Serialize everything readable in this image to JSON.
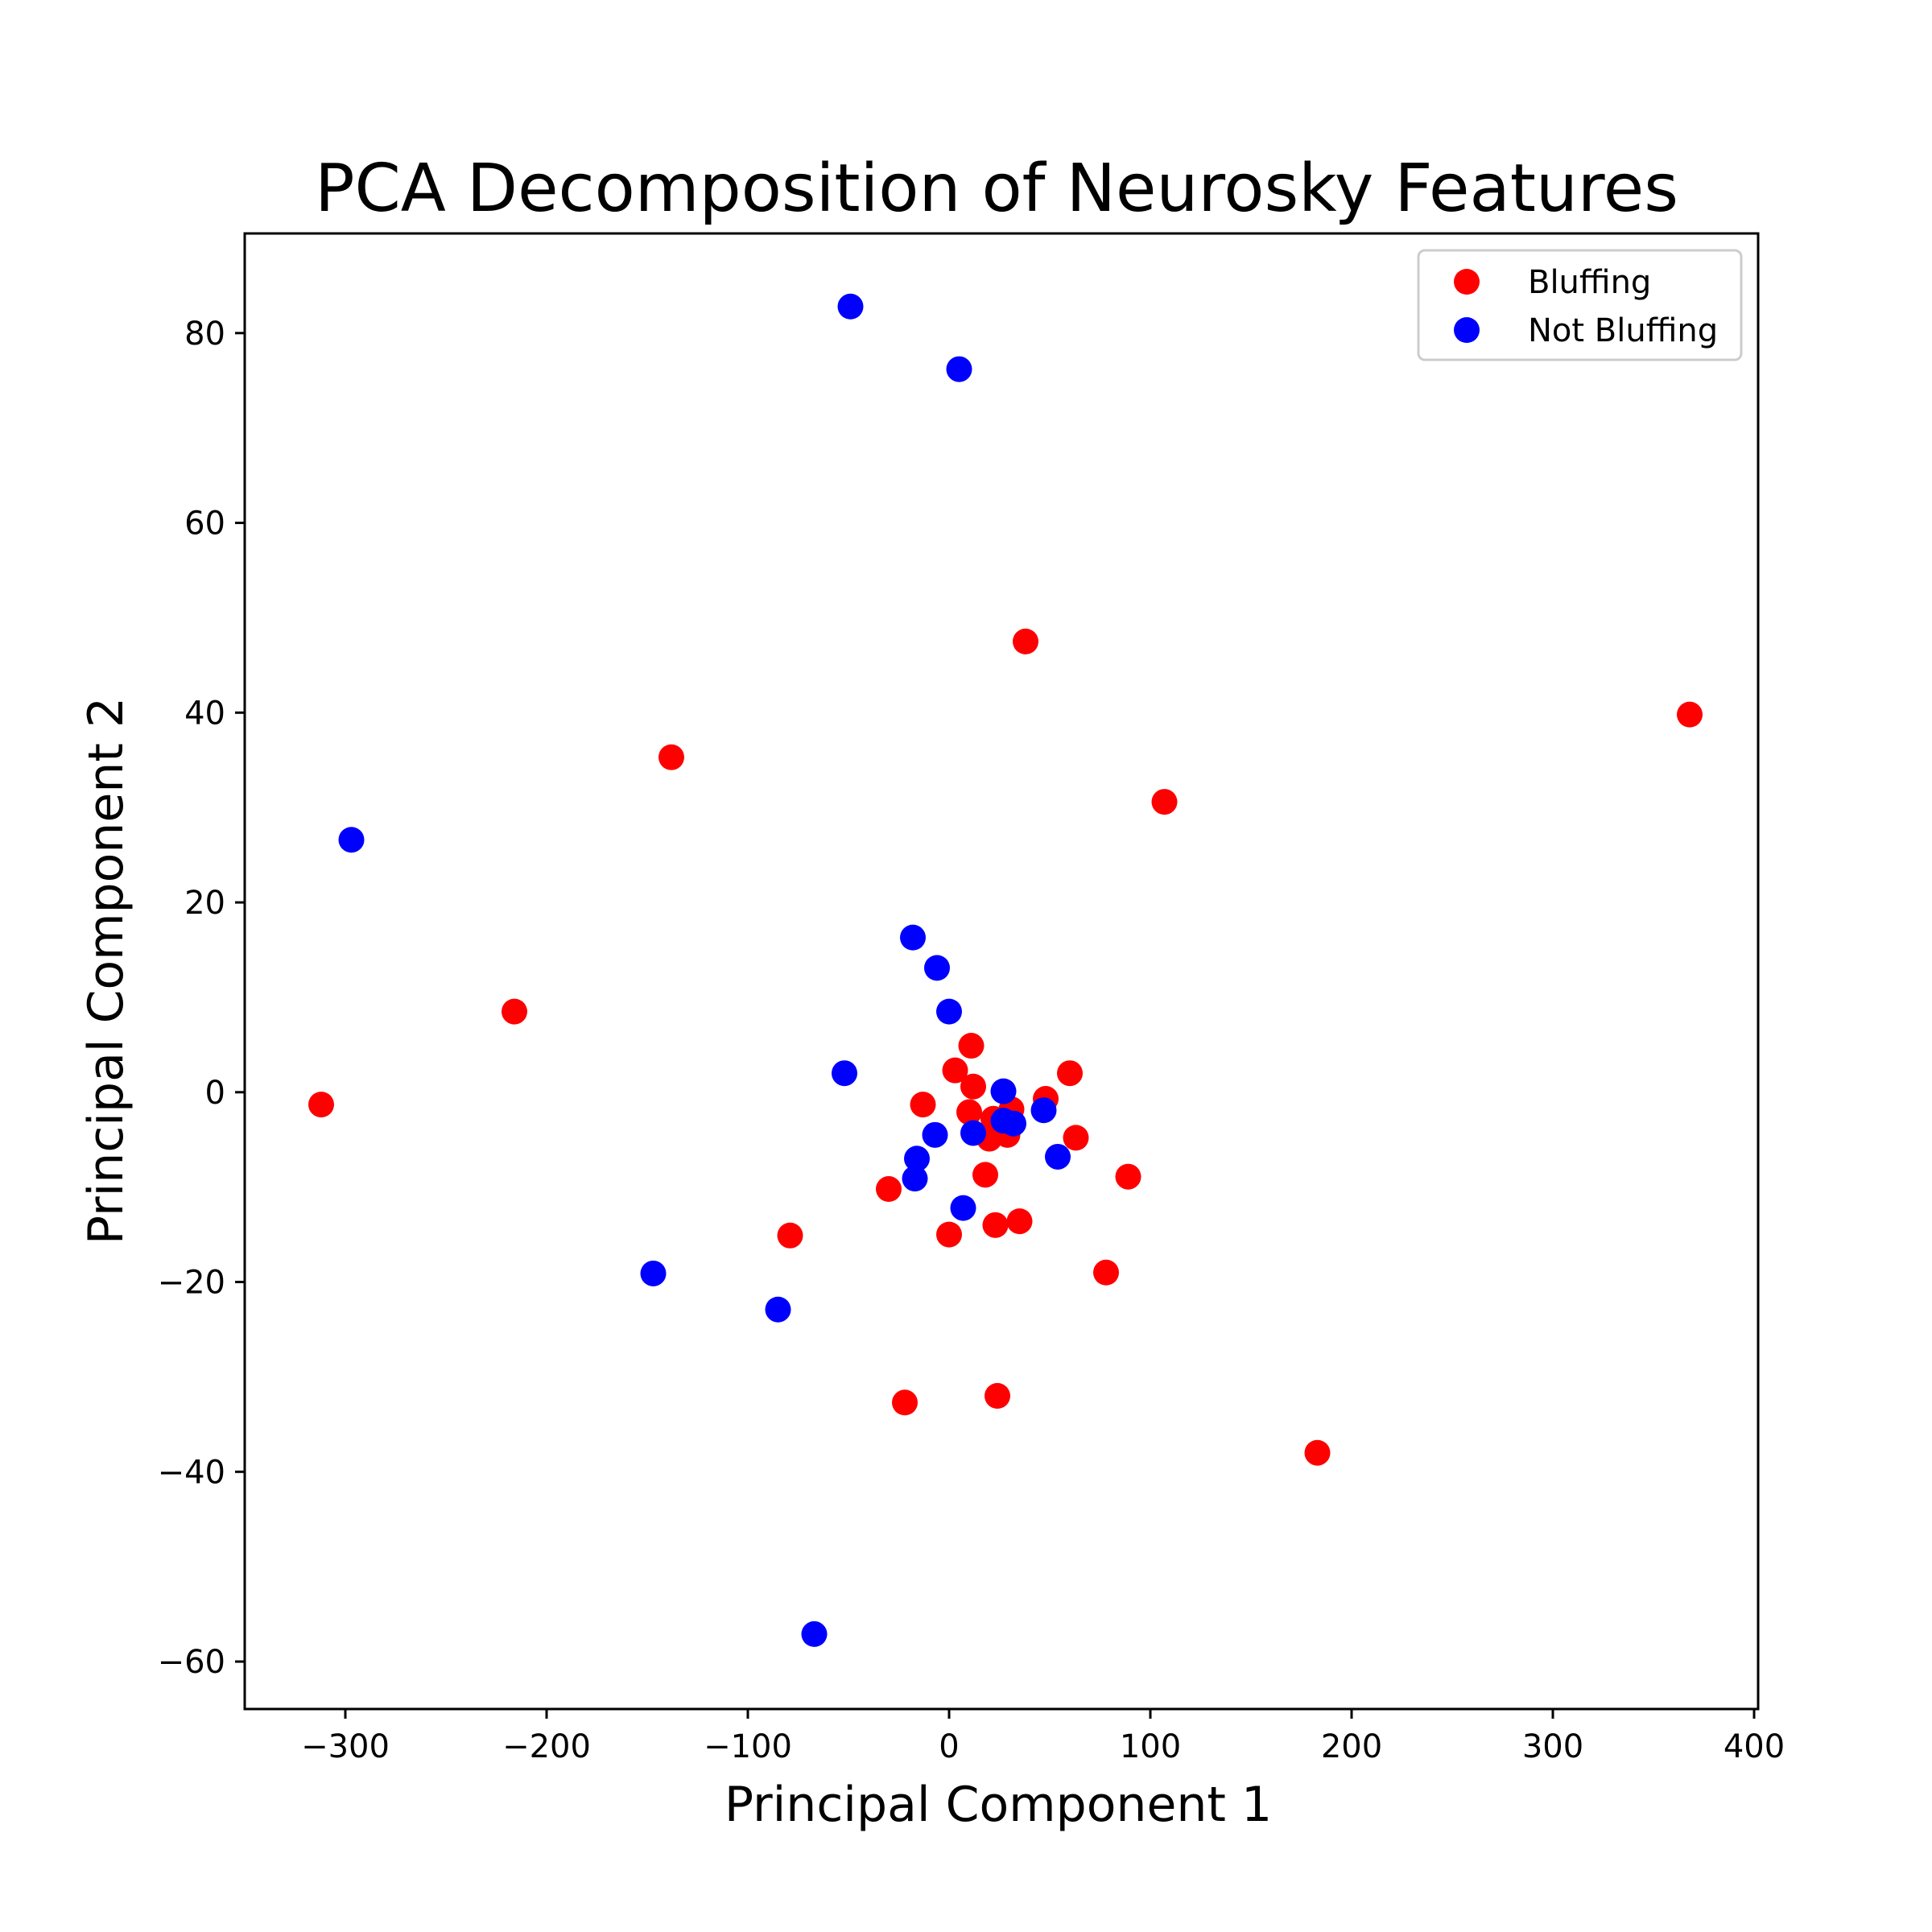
{
  "chart_data": {
    "type": "scatter",
    "title": "PCA Decomposition of Neurosky Features",
    "xlabel": "Principal Component 1",
    "ylabel": "Principal Component 2",
    "xlim": [
      -350,
      402
    ],
    "ylim": [
      -65,
      90.5
    ],
    "xticks": [
      -300,
      -200,
      -100,
      0,
      100,
      200,
      300,
      400
    ],
    "xtick_labels": [
      "−300",
      "−200",
      "−100",
      "0",
      "100",
      "200",
      "300",
      "400"
    ],
    "yticks": [
      -60,
      -40,
      -20,
      0,
      20,
      40,
      60,
      80
    ],
    "ytick_labels": [
      "−60",
      "−40",
      "−20",
      "0",
      "20",
      "40",
      "60",
      "80"
    ],
    "grid": false,
    "legend_position": "top-right",
    "series": [
      {
        "name": "Bluffing",
        "color": "#ff0000",
        "points": [
          [
            -312,
            -1.3
          ],
          [
            -216,
            8.5
          ],
          [
            -138,
            35.3
          ],
          [
            -79,
            -15.1
          ],
          [
            -30,
            -10.2
          ],
          [
            -22,
            -32.7
          ],
          [
            -13,
            -1.3
          ],
          [
            0,
            -15
          ],
          [
            3,
            2.3
          ],
          [
            10,
            -2.1
          ],
          [
            11,
            4.9
          ],
          [
            12,
            0.6
          ],
          [
            18,
            -8.7
          ],
          [
            20,
            -4.9
          ],
          [
            22,
            -2.8
          ],
          [
            23,
            -14
          ],
          [
            24,
            -32
          ],
          [
            29,
            -4.5
          ],
          [
            31,
            -1.8
          ],
          [
            35,
            -13.6
          ],
          [
            38,
            47.5
          ],
          [
            48,
            -0.7
          ],
          [
            60,
            2
          ],
          [
            63,
            -4.8
          ],
          [
            78,
            -19
          ],
          [
            89,
            -8.9
          ],
          [
            107,
            30.6
          ],
          [
            183,
            -38
          ],
          [
            368,
            39.8
          ]
        ]
      },
      {
        "name": "Not Bluffing",
        "color": "#0000ff",
        "points": [
          [
            -297,
            26.6
          ],
          [
            -147,
            -19.1
          ],
          [
            -85,
            -22.9
          ],
          [
            -67,
            -57.1
          ],
          [
            -52,
            2
          ],
          [
            -49,
            82.8
          ],
          [
            -18,
            16.3
          ],
          [
            -17,
            -9.1
          ],
          [
            -16,
            -7
          ],
          [
            -7,
            -4.5
          ],
          [
            -6,
            13.1
          ],
          [
            0,
            8.5
          ],
          [
            5,
            76.2
          ],
          [
            7,
            -12.2
          ],
          [
            12,
            -4.3
          ],
          [
            27,
            0.1
          ],
          [
            27,
            -3
          ],
          [
            32,
            -3.3
          ],
          [
            47,
            -1.9
          ],
          [
            54,
            -6.8
          ]
        ]
      }
    ]
  }
}
